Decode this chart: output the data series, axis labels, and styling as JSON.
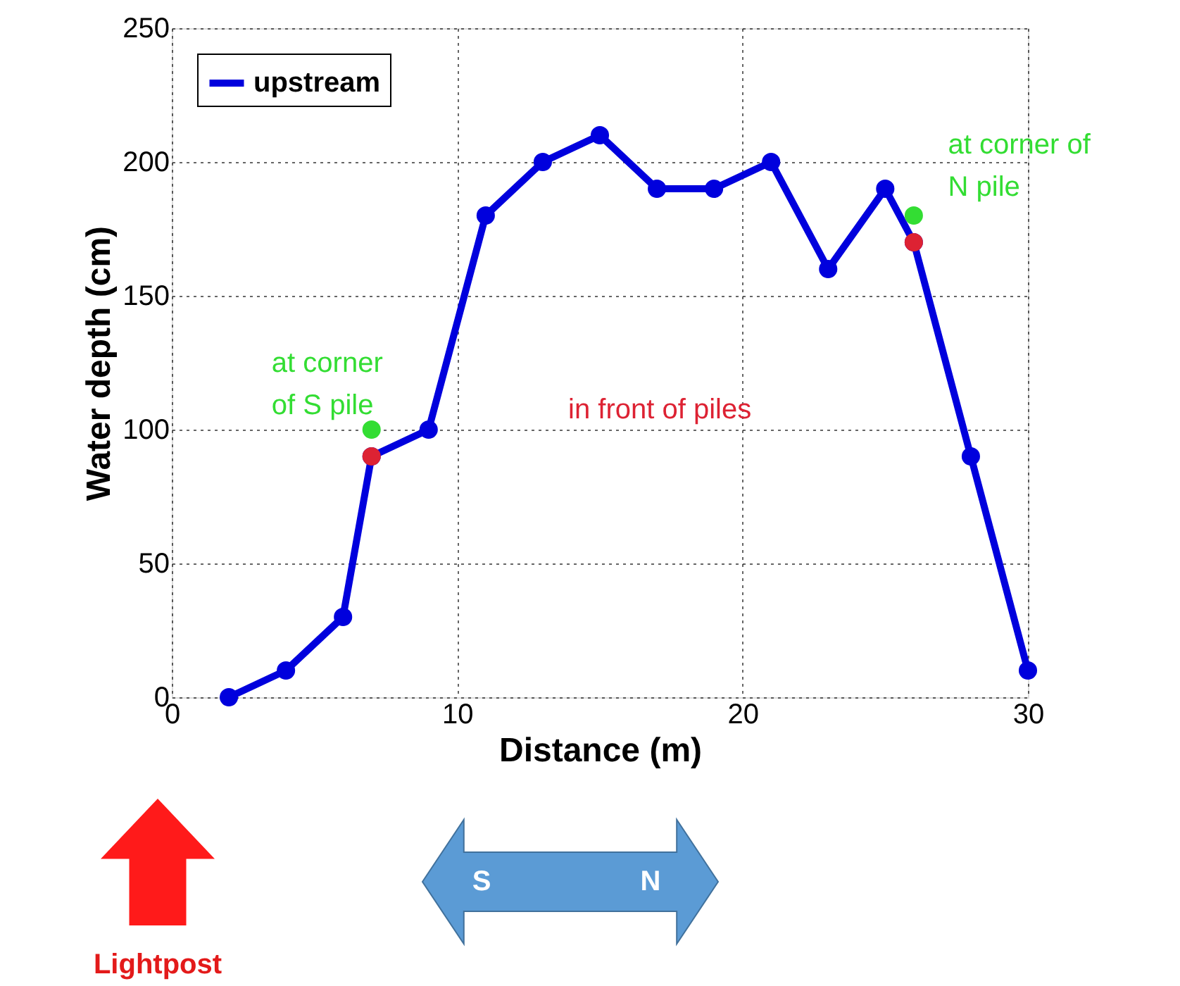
{
  "chart_data": {
    "type": "line",
    "xlabel": "Distance (m)",
    "ylabel": "Water depth (cm)",
    "xlim": [
      0,
      30
    ],
    "xticks": [
      0,
      10,
      20,
      30
    ],
    "ylim": [
      0,
      250
    ],
    "yticks": [
      0,
      50,
      100,
      150,
      200,
      250
    ],
    "grid": true,
    "legend": "top left",
    "marker": "circle",
    "line_style": "solid",
    "series": [
      {
        "name": "upstream",
        "color": "#0000dd",
        "x": [
          2,
          4,
          6,
          7,
          9,
          11,
          13,
          15,
          17,
          19,
          21,
          23,
          25,
          26,
          28,
          30
        ],
        "values": [
          0,
          10,
          30,
          90,
          100,
          180,
          200,
          210,
          190,
          190,
          200,
          160,
          190,
          170,
          90,
          10
        ]
      },
      {
        "type": "scatter",
        "color": "#33dd33",
        "x": [
          7,
          26
        ],
        "values": [
          100,
          180
        ]
      },
      {
        "type": "scatter",
        "color": "#dd2233",
        "x": [
          7,
          26
        ],
        "values": [
          90,
          170
        ]
      }
    ],
    "annotations": [
      {
        "text": "at corner\nof S pile",
        "x": 7,
        "y": 100
      },
      {
        "text": "at corner of\nN pile",
        "x": 26,
        "y": 180
      },
      "in front of piles",
      "Lightpost",
      "S",
      "N"
    ]
  }
}
